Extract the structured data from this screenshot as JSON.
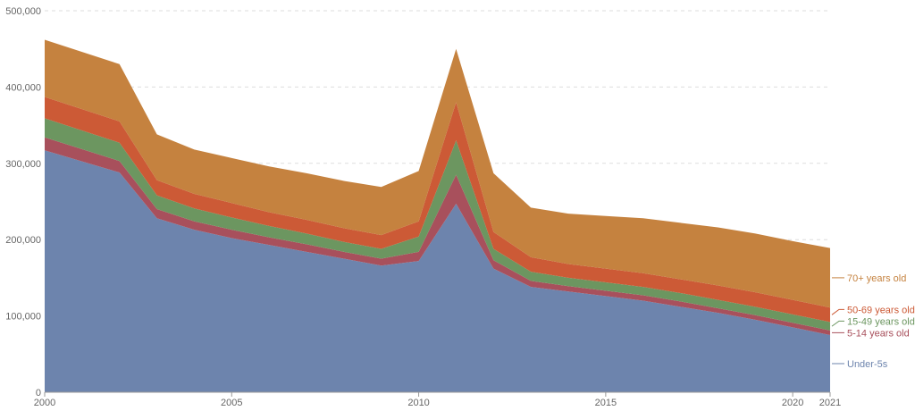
{
  "chart_data": {
    "type": "area",
    "stacked": true,
    "title": "",
    "xlabel": "",
    "ylabel": "",
    "xlim": [
      2000,
      2021
    ],
    "ylim": [
      0,
      500000
    ],
    "grid": true,
    "legend_placement": "right",
    "x": [
      2000,
      2002,
      2003,
      2004,
      2005,
      2006,
      2007,
      2008,
      2009,
      2010,
      2011,
      2012,
      2013,
      2014,
      2015,
      2016,
      2017,
      2018,
      2019,
      2020,
      2021
    ],
    "x_ticks": [
      2000,
      2005,
      2010,
      2015,
      2020,
      2021
    ],
    "x_tick_labels": [
      "2000",
      "2005",
      "2010",
      "2015",
      "2020",
      "2021"
    ],
    "y_ticks": [
      0,
      100000,
      200000,
      300000,
      400000,
      500000
    ],
    "y_tick_labels": [
      "0",
      "100,000",
      "200,000",
      "300,000",
      "400,000",
      "500,000"
    ],
    "series": [
      {
        "name": "Under-5s",
        "color": "#6d84ad",
        "values": [
          317000,
          288000,
          228000,
          213000,
          202000,
          193000,
          184000,
          175000,
          166000,
          172000,
          247000,
          162000,
          138000,
          132000,
          126000,
          120000,
          112000,
          104000,
          95000,
          85000,
          75000
        ]
      },
      {
        "name": "5-14 years old",
        "color": "#a8505c",
        "values": [
          17000,
          15000,
          12000,
          11000,
          11000,
          10000,
          10000,
          9000,
          9000,
          12000,
          38000,
          11000,
          8000,
          7000,
          7000,
          7000,
          7000,
          6000,
          6000,
          6000,
          6000
        ]
      },
      {
        "name": "15-49 years old",
        "color": "#6c9660",
        "values": [
          25000,
          24000,
          18000,
          17000,
          16000,
          15000,
          14000,
          13000,
          13000,
          20000,
          45000,
          15000,
          12000,
          11000,
          11000,
          11000,
          11000,
          11000,
          11000,
          11000,
          11000
        ]
      },
      {
        "name": "50-69 years old",
        "color": "#cc5a36",
        "values": [
          28000,
          28000,
          20000,
          19000,
          19000,
          18000,
          18000,
          18000,
          18000,
          20000,
          50000,
          22000,
          19000,
          18000,
          18000,
          18000,
          18000,
          19000,
          19000,
          19000,
          19000
        ]
      },
      {
        "name": "70+ years old",
        "color": "#c5823f",
        "values": [
          75000,
          75000,
          60000,
          58000,
          59000,
          60000,
          61000,
          62000,
          63000,
          66000,
          70000,
          77000,
          65000,
          66000,
          69000,
          72000,
          74000,
          76000,
          77000,
          77000,
          78000
        ]
      }
    ]
  }
}
